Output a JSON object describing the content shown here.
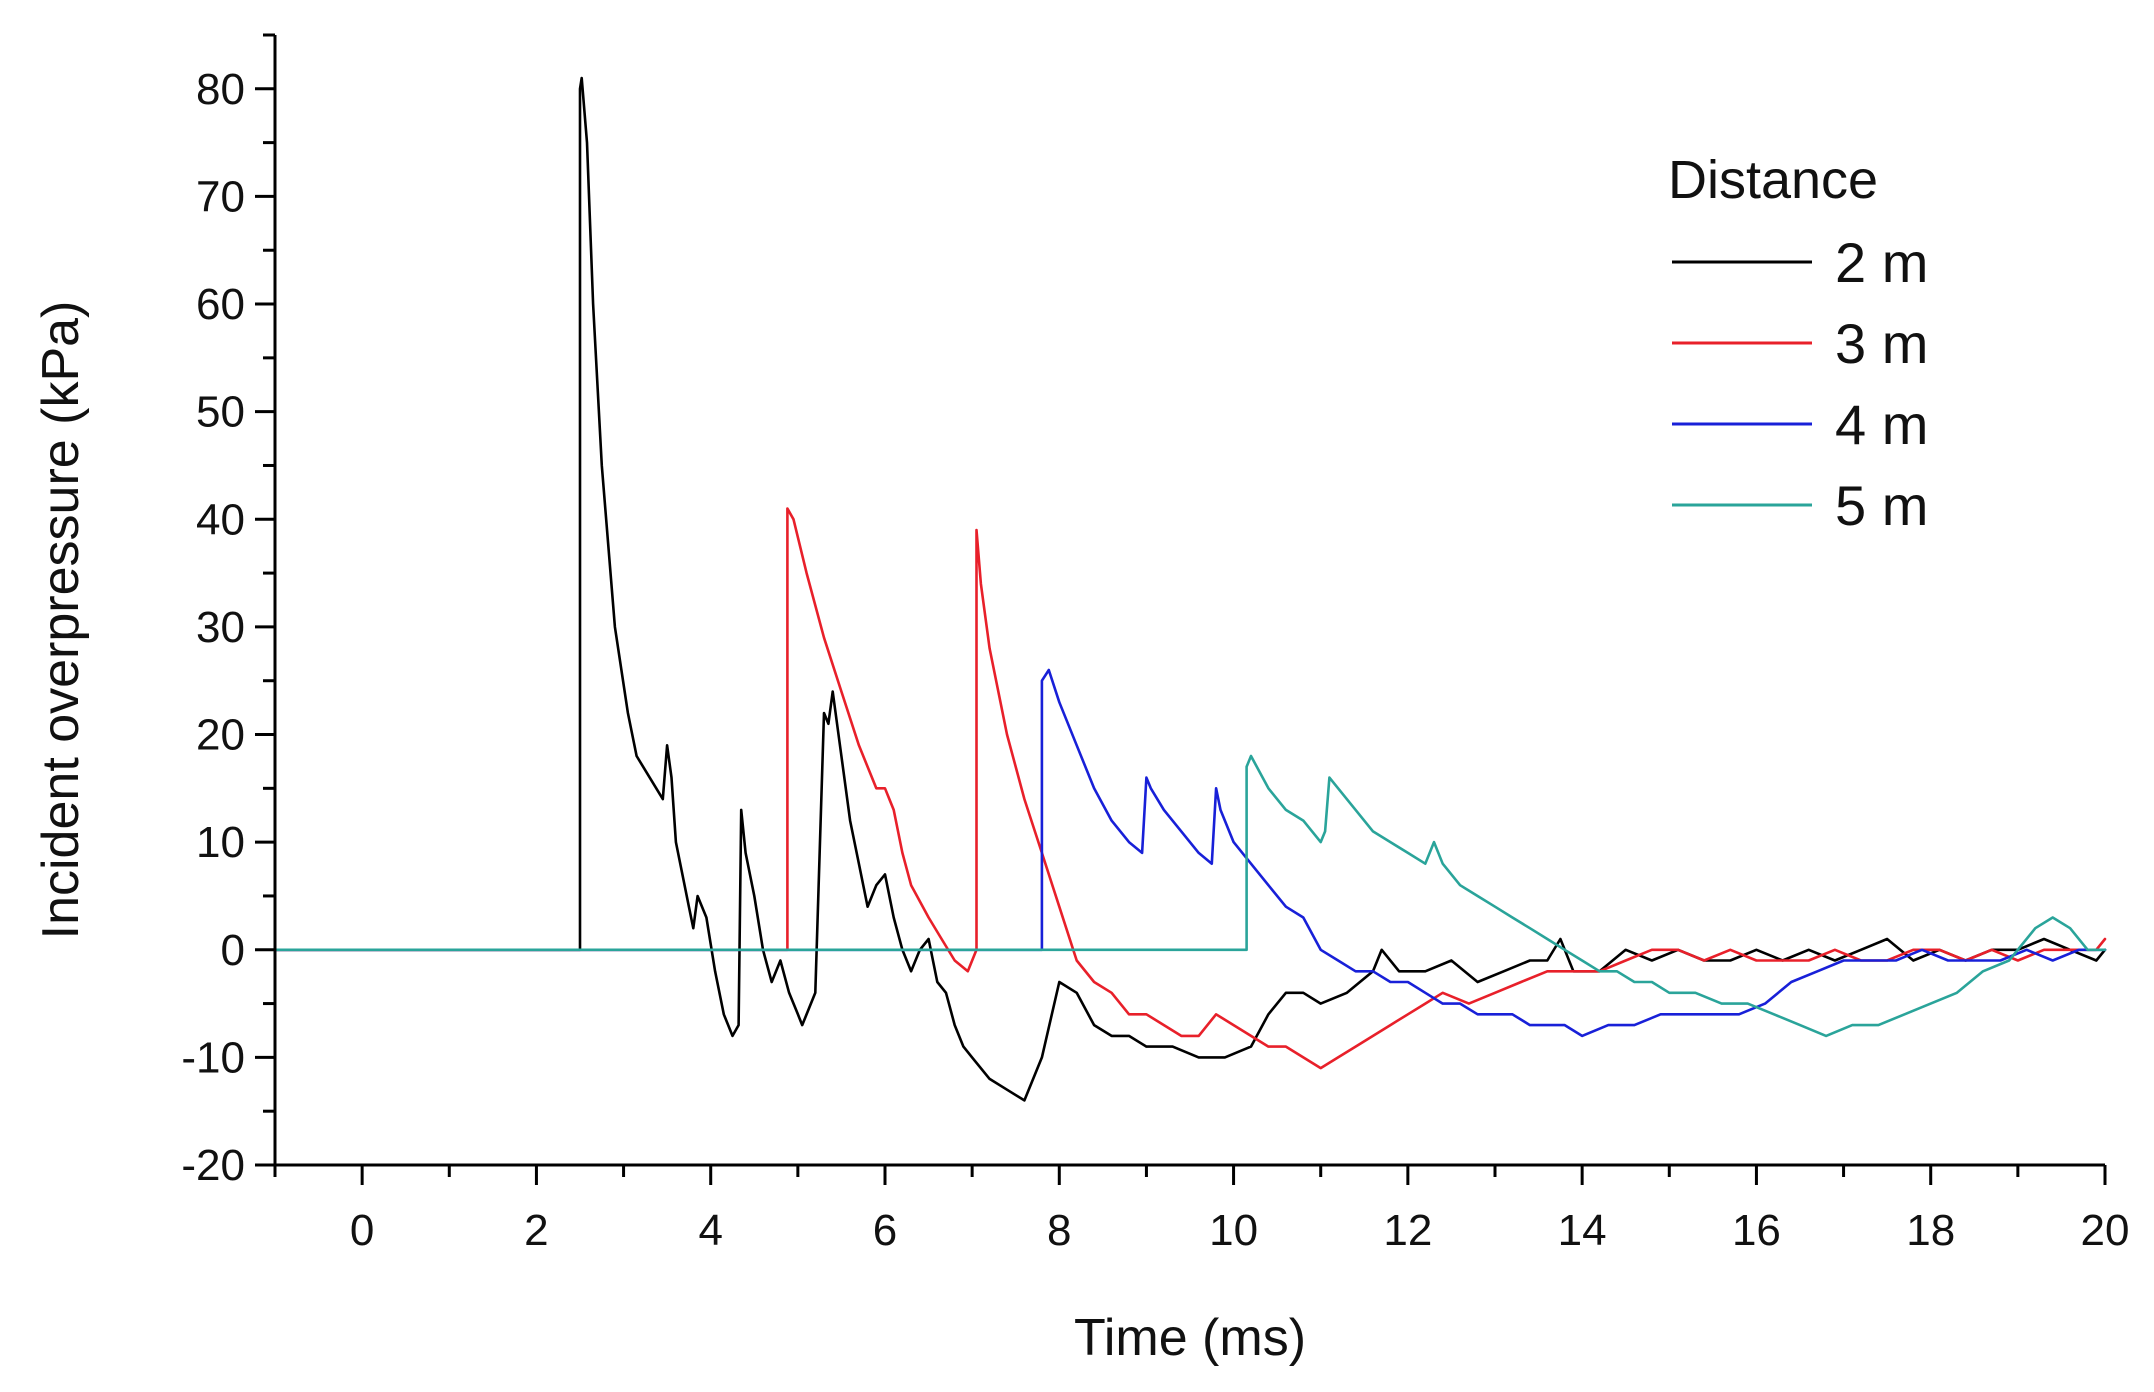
{
  "chart_data": {
    "type": "line",
    "title": "",
    "xlabel": "Time (ms)",
    "ylabel": "Incident overpressure (kPa)",
    "xlim": [
      -1,
      20
    ],
    "ylim": [
      -20,
      85
    ],
    "xticks": [
      0,
      2,
      4,
      6,
      8,
      10,
      12,
      14,
      16,
      18,
      20
    ],
    "xtick_labels": [
      "0",
      "2",
      "4",
      "6",
      "8",
      "10",
      "12",
      "14",
      "16",
      "18",
      "20"
    ],
    "yticks": [
      -20,
      -10,
      0,
      10,
      20,
      30,
      40,
      50,
      60,
      70,
      80
    ],
    "ytick_labels": [
      "-20",
      "-10",
      "0",
      "10",
      "20",
      "30",
      "40",
      "50",
      "60",
      "70",
      "80"
    ],
    "legend": {
      "title": "Distance",
      "position": "top-right"
    },
    "series": [
      {
        "name": "2 m",
        "color": "#000000",
        "x": [
          -1,
          2.5,
          2.5,
          2.52,
          2.58,
          2.65,
          2.75,
          2.9,
          3.05,
          3.15,
          3.3,
          3.45,
          3.5,
          3.55,
          3.6,
          3.75,
          3.8,
          3.85,
          3.95,
          4.05,
          4.15,
          4.25,
          4.32,
          4.35,
          4.4,
          4.5,
          4.6,
          4.7,
          4.8,
          4.9,
          5.0,
          5.05,
          5.1,
          5.2,
          5.3,
          5.35,
          5.4,
          5.5,
          5.6,
          5.7,
          5.8,
          5.9,
          6.0,
          6.1,
          6.2,
          6.3,
          6.4,
          6.5,
          6.6,
          6.7,
          6.8,
          6.9,
          7.0,
          7.2,
          7.4,
          7.6,
          7.8,
          8.0,
          8.2,
          8.4,
          8.6,
          8.8,
          9.0,
          9.3,
          9.6,
          9.9,
          10.2,
          10.4,
          10.6,
          10.8,
          11.0,
          11.3,
          11.6,
          11.7,
          11.9,
          12.2,
          12.5,
          12.8,
          13.1,
          13.4,
          13.6,
          13.75,
          13.9,
          14.2,
          14.5,
          14.8,
          15.1,
          15.4,
          15.7,
          16.0,
          16.3,
          16.6,
          16.9,
          17.2,
          17.5,
          17.8,
          18.1,
          18.4,
          18.7,
          19.0,
          19.3,
          19.6,
          19.9,
          20
        ],
        "y": [
          0,
          0,
          80,
          81,
          75,
          60,
          45,
          30,
          22,
          18,
          16,
          14,
          19,
          16,
          10,
          4,
          2,
          5,
          3,
          -2,
          -6,
          -8,
          -7,
          13,
          9,
          5,
          0,
          -3,
          -1,
          -4,
          -6,
          -7,
          -6,
          -4,
          22,
          21,
          24,
          18,
          12,
          8,
          4,
          6,
          7,
          3,
          0,
          -2,
          0,
          1,
          -3,
          -4,
          -7,
          -9,
          -10,
          -12,
          -13,
          -14,
          -10,
          -3,
          -4,
          -7,
          -8,
          -8,
          -9,
          -9,
          -10,
          -10,
          -9,
          -6,
          -4,
          -4,
          -5,
          -4,
          -2,
          0,
          -2,
          -2,
          -1,
          -3,
          -2,
          -1,
          -1,
          1,
          -2,
          -2,
          0,
          -1,
          0,
          -1,
          -1,
          0,
          -1,
          0,
          -1,
          0,
          1,
          -1,
          0,
          -1,
          0,
          0,
          1,
          0,
          -1,
          0
        ]
      },
      {
        "name": "3 m",
        "color": "#e8202a",
        "x": [
          -1,
          4.88,
          4.88,
          4.95,
          5.1,
          5.3,
          5.5,
          5.7,
          5.9,
          6.0,
          6.1,
          6.2,
          6.3,
          6.5,
          6.65,
          6.8,
          6.95,
          7.05,
          7.05,
          7.1,
          7.2,
          7.4,
          7.6,
          7.8,
          8.0,
          8.2,
          8.4,
          8.6,
          8.8,
          9.0,
          9.2,
          9.4,
          9.6,
          9.8,
          10.0,
          10.2,
          10.4,
          10.6,
          10.8,
          11.0,
          11.2,
          11.4,
          11.6,
          11.8,
          12.0,
          12.2,
          12.4,
          12.7,
          13.0,
          13.3,
          13.6,
          13.9,
          14.2,
          14.5,
          14.8,
          15.1,
          15.4,
          15.7,
          16.0,
          16.3,
          16.6,
          16.9,
          17.2,
          17.5,
          17.8,
          18.1,
          18.4,
          18.7,
          19.0,
          19.3,
          19.6,
          19.9,
          20
        ],
        "y": [
          0,
          0,
          41,
          40,
          35,
          29,
          24,
          19,
          15,
          15,
          13,
          9,
          6,
          3,
          1,
          -1,
          -2,
          0,
          39,
          34,
          28,
          20,
          14,
          9,
          4,
          -1,
          -3,
          -4,
          -6,
          -6,
          -7,
          -8,
          -8,
          -6,
          -7,
          -8,
          -9,
          -9,
          -10,
          -11,
          -10,
          -9,
          -8,
          -7,
          -6,
          -5,
          -4,
          -5,
          -4,
          -3,
          -2,
          -2,
          -2,
          -1,
          0,
          0,
          -1,
          0,
          -1,
          -1,
          -1,
          0,
          -1,
          -1,
          0,
          0,
          -1,
          0,
          -1,
          0,
          0,
          0,
          1
        ]
      },
      {
        "name": "4 m",
        "color": "#1820d8",
        "x": [
          -1,
          7.2,
          7.8,
          7.8,
          7.88,
          8.0,
          8.2,
          8.4,
          8.6,
          8.8,
          8.95,
          9.0,
          9.05,
          9.2,
          9.4,
          9.6,
          9.75,
          9.8,
          9.85,
          10.0,
          10.2,
          10.4,
          10.6,
          10.8,
          11.0,
          11.2,
          11.4,
          11.6,
          11.8,
          12.0,
          12.2,
          12.4,
          12.6,
          12.8,
          13.0,
          13.2,
          13.4,
          13.6,
          13.8,
          14.0,
          14.3,
          14.6,
          14.9,
          15.2,
          15.5,
          15.8,
          16.1,
          16.4,
          16.7,
          17.0,
          17.3,
          17.6,
          17.9,
          18.2,
          18.5,
          18.8,
          19.1,
          19.4,
          19.7,
          20
        ],
        "y": [
          0,
          0,
          0,
          25,
          26,
          23,
          19,
          15,
          12,
          10,
          9,
          16,
          15,
          13,
          11,
          9,
          8,
          15,
          13,
          10,
          8,
          6,
          4,
          3,
          0,
          -1,
          -2,
          -2,
          -3,
          -3,
          -4,
          -5,
          -5,
          -6,
          -6,
          -6,
          -7,
          -7,
          -7,
          -8,
          -7,
          -7,
          -6,
          -6,
          -6,
          -6,
          -5,
          -3,
          -2,
          -1,
          -1,
          -1,
          0,
          -1,
          -1,
          -1,
          0,
          -1,
          0,
          0
        ]
      },
      {
        "name": "5 m",
        "color": "#2aa49a",
        "x": [
          -1,
          10.15,
          10.15,
          10.2,
          10.4,
          10.6,
          10.8,
          11.0,
          11.05,
          11.1,
          11.2,
          11.4,
          11.6,
          11.8,
          12.0,
          12.2,
          12.3,
          12.4,
          12.6,
          12.8,
          13.0,
          13.2,
          13.4,
          13.6,
          13.8,
          14.0,
          14.2,
          14.4,
          14.6,
          14.8,
          15.0,
          15.3,
          15.6,
          15.9,
          16.2,
          16.5,
          16.8,
          17.1,
          17.4,
          17.7,
          18.0,
          18.3,
          18.6,
          18.9,
          19.2,
          19.4,
          19.6,
          19.8,
          20
        ],
        "y": [
          0,
          0,
          17,
          18,
          15,
          13,
          12,
          10,
          11,
          16,
          15,
          13,
          11,
          10,
          9,
          8,
          10,
          8,
          6,
          5,
          4,
          3,
          2,
          1,
          0,
          -1,
          -2,
          -2,
          -3,
          -3,
          -4,
          -4,
          -5,
          -5,
          -6,
          -7,
          -8,
          -7,
          -7,
          -6,
          -5,
          -4,
          -2,
          -1,
          2,
          3,
          2,
          0,
          0
        ]
      }
    ]
  }
}
